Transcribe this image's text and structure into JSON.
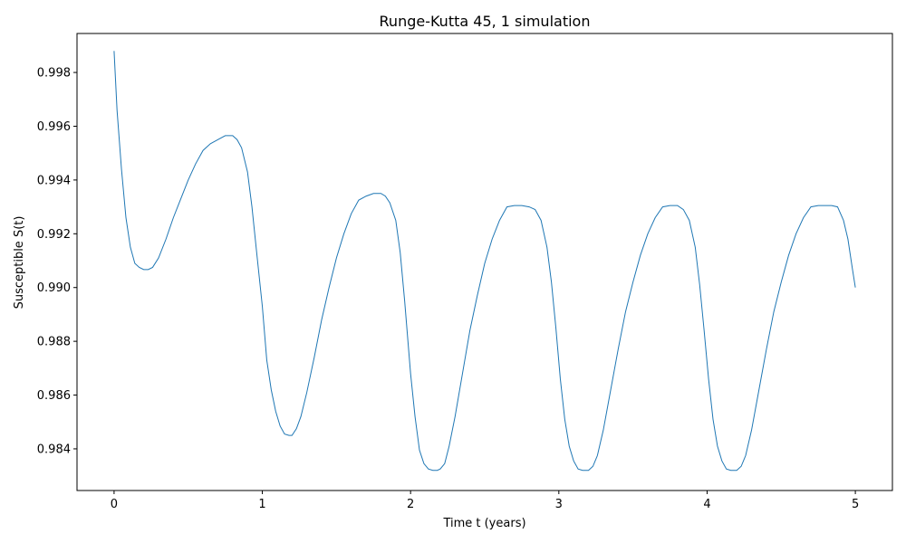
{
  "chart_data": {
    "type": "line",
    "title": "Runge-Kutta 45, 1 simulation",
    "xlabel": "Time t (years)",
    "ylabel": "Susceptible S(t)",
    "xlim": [
      -0.25,
      5.25
    ],
    "ylim": [
      0.98245,
      0.99945
    ],
    "xticks": [
      0,
      1,
      2,
      3,
      4,
      5
    ],
    "yticks": [
      0.984,
      0.986,
      0.988,
      0.99,
      0.992,
      0.994,
      0.996,
      0.998
    ],
    "xtick_labels": [
      "0",
      "1",
      "2",
      "3",
      "4",
      "5"
    ],
    "ytick_labels": [
      "0.984",
      "0.986",
      "0.988",
      "0.990",
      "0.992",
      "0.994",
      "0.996",
      "0.998"
    ],
    "grid": false,
    "legend": "none",
    "series": [
      {
        "color": "#1f77b4",
        "x": [
          0,
          0.02,
          0.05,
          0.08,
          0.11,
          0.14,
          0.17,
          0.2,
          0.23,
          0.26,
          0.3,
          0.35,
          0.4,
          0.45,
          0.5,
          0.55,
          0.6,
          0.65,
          0.7,
          0.75,
          0.8,
          0.83,
          0.86,
          0.9,
          0.93,
          0.96,
          1.0,
          1.03,
          1.06,
          1.09,
          1.12,
          1.15,
          1.18,
          1.2,
          1.23,
          1.26,
          1.3,
          1.35,
          1.4,
          1.45,
          1.5,
          1.55,
          1.6,
          1.65,
          1.7,
          1.75,
          1.8,
          1.83,
          1.86,
          1.9,
          1.93,
          1.96,
          2.0,
          2.03,
          2.06,
          2.09,
          2.12,
          2.15,
          2.18,
          2.2,
          2.23,
          2.26,
          2.3,
          2.35,
          2.4,
          2.45,
          2.5,
          2.55,
          2.6,
          2.65,
          2.7,
          2.75,
          2.8,
          2.84,
          2.88,
          2.92,
          2.95,
          2.98,
          3.01,
          3.04,
          3.07,
          3.1,
          3.13,
          3.16,
          3.2,
          3.23,
          3.26,
          3.3,
          3.35,
          3.4,
          3.45,
          3.5,
          3.55,
          3.6,
          3.65,
          3.7,
          3.75,
          3.8,
          3.84,
          3.88,
          3.92,
          3.95,
          3.98,
          4.01,
          4.04,
          4.07,
          4.1,
          4.13,
          4.16,
          4.2,
          4.23,
          4.26,
          4.3,
          4.35,
          4.4,
          4.45,
          4.5,
          4.55,
          4.6,
          4.65,
          4.7,
          4.75,
          4.8,
          4.84,
          4.88,
          4.92,
          4.95,
          4.98,
          5.0
        ],
        "y": [
          0.9988,
          0.9966,
          0.9944,
          0.9926,
          0.9915,
          0.9909,
          0.99075,
          0.99067,
          0.99067,
          0.99075,
          0.9911,
          0.9918,
          0.9926,
          0.9933,
          0.994,
          0.9946,
          0.9951,
          0.99535,
          0.9955,
          0.99565,
          0.99565,
          0.9955,
          0.9952,
          0.9943,
          0.993,
          0.9914,
          0.9893,
          0.9873,
          0.9862,
          0.9854,
          0.98485,
          0.98455,
          0.9845,
          0.9845,
          0.98475,
          0.9852,
          0.9861,
          0.9874,
          0.9888,
          0.99,
          0.9911,
          0.992,
          0.99275,
          0.99325,
          0.9934,
          0.9935,
          0.9935,
          0.9934,
          0.99315,
          0.9925,
          0.9913,
          0.9895,
          0.9868,
          0.9852,
          0.98395,
          0.98345,
          0.98325,
          0.9832,
          0.9832,
          0.98325,
          0.98345,
          0.9841,
          0.9852,
          0.9868,
          0.9884,
          0.9897,
          0.9909,
          0.9918,
          0.9925,
          0.993,
          0.99305,
          0.99305,
          0.993,
          0.9929,
          0.9925,
          0.9915,
          0.9902,
          0.9885,
          0.9866,
          0.9851,
          0.9841,
          0.98355,
          0.98325,
          0.9832,
          0.9832,
          0.98335,
          0.98375,
          0.9847,
          0.9862,
          0.9877,
          0.9891,
          0.9902,
          0.9912,
          0.992,
          0.9926,
          0.993,
          0.99305,
          0.99305,
          0.9929,
          0.9925,
          0.9915,
          0.9901,
          0.9884,
          0.9866,
          0.9851,
          0.9841,
          0.98355,
          0.98325,
          0.9832,
          0.9832,
          0.98335,
          0.98375,
          0.9847,
          0.9862,
          0.9877,
          0.9891,
          0.9902,
          0.9912,
          0.992,
          0.9926,
          0.993,
          0.99305,
          0.99305,
          0.99305,
          0.993,
          0.9925,
          0.9918,
          0.9907,
          0.99
        ]
      }
    ]
  }
}
